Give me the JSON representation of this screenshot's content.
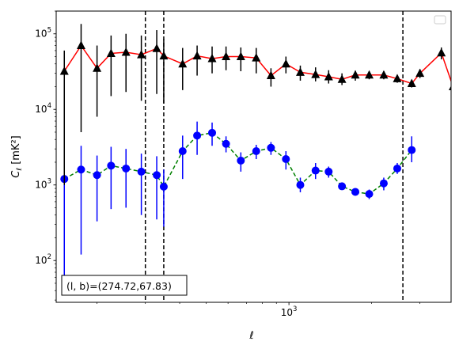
{
  "chart_data": {
    "type": "scatter",
    "xlabel": "ℓ",
    "ylabel_main": "C",
    "ylabel_sub": "ℓ",
    "ylabel_unit": "[mK²]",
    "xscale": "log",
    "yscale": "log",
    "xlim": [
      142,
      3895
    ],
    "ylim": [
      28,
      200000
    ],
    "x_tick_labels": [
      {
        "value": 1000,
        "base": "10",
        "exp": "3"
      }
    ],
    "y_tick_labels": [
      {
        "value": 100,
        "base": "10",
        "exp": "2"
      },
      {
        "value": 1000,
        "base": "10",
        "exp": "3"
      },
      {
        "value": 10000,
        "base": "10",
        "exp": "4"
      },
      {
        "value": 100000,
        "base": "10",
        "exp": "5"
      }
    ],
    "legend_position": "top-right",
    "annotation": "(l, b)=(274.72,67.83)",
    "annotation_position": "bottom-left",
    "vlines": [
      300,
      350,
      2600
    ],
    "x": [
      152,
      175,
      200,
      225,
      255,
      290,
      330,
      350,
      410,
      463,
      525,
      590,
      668,
      760,
      860,
      975,
      1100,
      1250,
      1395,
      1560,
      1745,
      1960,
      2215,
      2480,
      2800,
      3000,
      3590,
      3960
    ],
    "series": [
      {
        "marker": "triangle",
        "color": "#000000",
        "line_color": "#ff0000",
        "line_style": "solid",
        "values": [
          32000,
          70000,
          35000,
          55000,
          57000,
          53000,
          64000,
          51000,
          40000,
          51000,
          47000,
          50000,
          50000,
          48000,
          28000,
          40000,
          31000,
          29000,
          27000,
          25000,
          28500,
          28500,
          28500,
          25500,
          22000,
          30000,
          56000,
          20000
        ],
        "err_low": [
          1000,
          5000,
          8000,
          15000,
          17000,
          13000,
          16000,
          12000,
          18000,
          28000,
          30000,
          33000,
          32000,
          30000,
          20000,
          30000,
          24000,
          23500,
          22000,
          21000,
          24000,
          25000,
          25000,
          22500,
          19500,
          26000,
          46000,
          10000
        ],
        "err_high": [
          60000,
          135000,
          70000,
          95000,
          100000,
          95000,
          112000,
          85000,
          65000,
          70000,
          68000,
          68000,
          66000,
          65000,
          35000,
          50000,
          38000,
          36000,
          33000,
          30000,
          32500,
          32000,
          32000,
          28500,
          24500,
          34000,
          66000,
          29000
        ]
      },
      {
        "marker": "circle",
        "color": "#0000ff",
        "line_color": "#008000",
        "line_style": "dashed",
        "values": [
          1200,
          1600,
          1350,
          1800,
          1650,
          1500,
          1350,
          950,
          2800,
          4500,
          4900,
          3500,
          2100,
          2800,
          3100,
          2200,
          1000,
          1550,
          1500,
          960,
          810,
          760,
          1050,
          1650,
          2900,
          0,
          0,
          0
        ],
        "err_low": [
          40,
          120,
          330,
          480,
          500,
          400,
          350,
          280,
          1200,
          2500,
          3300,
          2700,
          1500,
          2200,
          2500,
          1600,
          800,
          1200,
          1250,
          880,
          750,
          650,
          850,
          1400,
          2000,
          0,
          0,
          0
        ],
        "err_high": [
          2500,
          3300,
          2450,
          3200,
          3000,
          2600,
          2400,
          1600,
          4500,
          6900,
          6700,
          4400,
          2700,
          3400,
          3700,
          2800,
          1250,
          1950,
          1750,
          1040,
          870,
          870,
          1250,
          1950,
          4400,
          0,
          0,
          0
        ]
      }
    ]
  }
}
